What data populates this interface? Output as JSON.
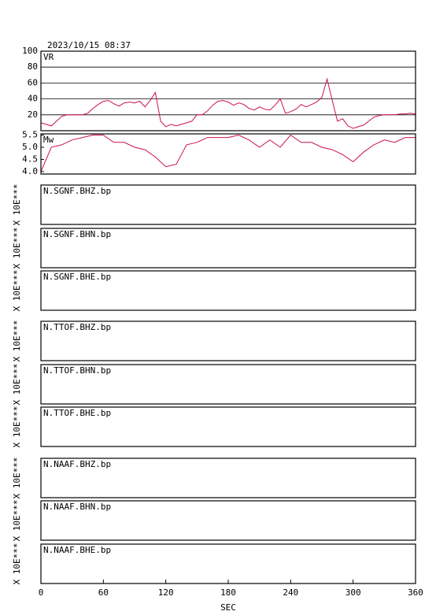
{
  "timestamp": "2023/10/15 08:37",
  "xaxis": {
    "label": "SEC",
    "xlim": [
      0,
      360
    ],
    "xticks": [
      0,
      60,
      120,
      180,
      240,
      300,
      360
    ]
  },
  "chart_data": [
    {
      "type": "line",
      "label": "VR",
      "color": "#cc1144",
      "grid": true,
      "ylim": [
        0,
        100
      ],
      "yticks": [
        20,
        40,
        60,
        80,
        100
      ],
      "x": [
        0,
        5,
        10,
        15,
        20,
        25,
        30,
        35,
        40,
        45,
        50,
        55,
        60,
        65,
        70,
        75,
        80,
        85,
        90,
        95,
        100,
        105,
        110,
        115,
        120,
        125,
        130,
        135,
        140,
        145,
        150,
        155,
        160,
        165,
        170,
        175,
        180,
        185,
        190,
        195,
        200,
        205,
        210,
        215,
        220,
        225,
        230,
        235,
        240,
        245,
        250,
        255,
        260,
        265,
        270,
        275,
        280,
        285,
        290,
        295,
        300,
        305,
        310,
        315,
        320,
        325,
        330,
        335,
        340,
        345,
        350,
        355,
        360
      ],
      "values": [
        10,
        8,
        6,
        12,
        18,
        20,
        20,
        20,
        20,
        22,
        28,
        33,
        37,
        38,
        34,
        31,
        35,
        36,
        35,
        37,
        30,
        38,
        48,
        12,
        5,
        8,
        6,
        8,
        10,
        12,
        20,
        20,
        25,
        32,
        37,
        38,
        36,
        32,
        35,
        33,
        28,
        26,
        30,
        27,
        26,
        32,
        40,
        22,
        24,
        27,
        33,
        30,
        33,
        36,
        42,
        65,
        38,
        12,
        15,
        6,
        3,
        5,
        7,
        12,
        17,
        19,
        20,
        20,
        20,
        21,
        21,
        22,
        21
      ]
    },
    {
      "type": "line",
      "label": "Mw",
      "color": "#cc1144",
      "grid": false,
      "ylim": [
        3.9,
        5.55
      ],
      "yticks": [
        {
          "value": 4,
          "label": "4.0"
        },
        4.5,
        {
          "value": 5,
          "label": "5.0"
        },
        5.5
      ],
      "x": [
        0,
        10,
        20,
        30,
        40,
        50,
        60,
        70,
        80,
        90,
        100,
        110,
        120,
        130,
        140,
        150,
        160,
        170,
        180,
        190,
        200,
        210,
        220,
        230,
        240,
        250,
        260,
        270,
        280,
        290,
        300,
        310,
        320,
        330,
        340,
        350,
        360
      ],
      "values": [
        4.0,
        5.0,
        5.1,
        5.3,
        5.4,
        5.5,
        5.5,
        5.2,
        5.2,
        5.0,
        4.9,
        4.6,
        4.2,
        4.3,
        5.1,
        5.2,
        5.4,
        5.4,
        5.4,
        5.5,
        5.3,
        5.0,
        5.3,
        5.0,
        5.5,
        5.2,
        5.2,
        5.0,
        4.9,
        4.7,
        4.4,
        4.8,
        5.1,
        5.3,
        5.2,
        5.4,
        5.4
      ]
    }
  ],
  "traces": [
    {
      "label": "N.SGNF.BHZ.bp",
      "ylabel": "X 10E***"
    },
    {
      "label": "N.SGNF.BHN.bp",
      "ylabel": "X 10E***"
    },
    {
      "label": "N.SGNF.BHE.bp",
      "ylabel": "X 10E***"
    },
    {
      "label": "N.TTOF.BHZ.bp",
      "ylabel": "X 10E***"
    },
    {
      "label": "N.TTOF.BHN.bp",
      "ylabel": "X 10E***"
    },
    {
      "label": "N.TTOF.BHE.bp",
      "ylabel": "X 10E***"
    },
    {
      "label": "N.NAAF.BHZ.bp",
      "ylabel": "X 10E***"
    },
    {
      "label": "N.NAAF.BHN.bp",
      "ylabel": "X 10E***"
    },
    {
      "label": "N.NAAF.BHE.bp",
      "ylabel": "X 10E***"
    }
  ]
}
